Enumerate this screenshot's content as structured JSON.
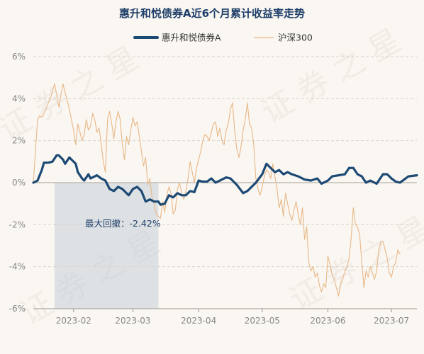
{
  "chart_data": {
    "type": "line",
    "title": "惠升和悦债券A近6个月累计收益率走势",
    "xlabel": "",
    "ylabel": "",
    "ylim": [
      -6,
      6
    ],
    "ytick_labels": [
      "6%",
      "4%",
      "2%",
      "0%",
      "-2%",
      "-4%",
      "-6%"
    ],
    "ytick_values": [
      6,
      4,
      2,
      0,
      -2,
      -4,
      -6
    ],
    "xlim": [
      "2023-01-13",
      "2023-07-13"
    ],
    "xtick_labels": [
      "2023-02",
      "2023-03",
      "2023-04",
      "2023-05",
      "2023-06",
      "2023-07"
    ],
    "xtick_dates": [
      "2023-02-01",
      "2023-03-01",
      "2023-04-01",
      "2023-05-01",
      "2023-06-01",
      "2023-07-01"
    ],
    "legend_position": "top-center",
    "grid": "horizontal-dashed",
    "annotation": {
      "text": "最大回撤：-2.42%",
      "region_start": "2023-01-23",
      "region_end": "2023-03-13"
    },
    "watermark": "证券之星",
    "series": [
      {
        "name": "惠升和悦债券A",
        "color": "#1d4a74",
        "points": [
          [
            "2023-01-13",
            0.0
          ],
          [
            "2023-01-15",
            0.1
          ],
          [
            "2023-01-17",
            0.6
          ],
          [
            "2023-01-18",
            0.95
          ],
          [
            "2023-01-20",
            0.95
          ],
          [
            "2023-01-22",
            1.0
          ],
          [
            "2023-01-24",
            1.3
          ],
          [
            "2023-01-25",
            1.3
          ],
          [
            "2023-01-27",
            1.1
          ],
          [
            "2023-01-28",
            0.9
          ],
          [
            "2023-01-30",
            1.2
          ],
          [
            "2023-01-31",
            1.1
          ],
          [
            "2023-02-02",
            0.9
          ],
          [
            "2023-02-03",
            0.5
          ],
          [
            "2023-02-05",
            0.2
          ],
          [
            "2023-02-06",
            0.1
          ],
          [
            "2023-02-08",
            0.4
          ],
          [
            "2023-02-09",
            0.2
          ],
          [
            "2023-02-11",
            0.3
          ],
          [
            "2023-02-12",
            0.35
          ],
          [
            "2023-02-14",
            0.2
          ],
          [
            "2023-02-16",
            0.1
          ],
          [
            "2023-02-18",
            -0.3
          ],
          [
            "2023-02-20",
            -0.4
          ],
          [
            "2023-02-22",
            -0.2
          ],
          [
            "2023-02-24",
            -0.3
          ],
          [
            "2023-02-26",
            -0.5
          ],
          [
            "2023-02-27",
            -0.6
          ],
          [
            "2023-03-01",
            -0.3
          ],
          [
            "2023-03-03",
            -0.2
          ],
          [
            "2023-03-05",
            -0.4
          ],
          [
            "2023-03-07",
            -0.9
          ],
          [
            "2023-03-09",
            -0.8
          ],
          [
            "2023-03-11",
            -0.9
          ],
          [
            "2023-03-13",
            -0.9
          ],
          [
            "2023-03-14",
            -1.05
          ],
          [
            "2023-03-16",
            -1.0
          ],
          [
            "2023-03-18",
            -0.6
          ],
          [
            "2023-03-20",
            -0.7
          ],
          [
            "2023-03-22",
            -0.5
          ],
          [
            "2023-03-24",
            -0.6
          ],
          [
            "2023-03-26",
            -0.6
          ],
          [
            "2023-03-28",
            -0.4
          ],
          [
            "2023-03-30",
            -0.45
          ],
          [
            "2023-04-01",
            0.1
          ],
          [
            "2023-04-03",
            0.05
          ],
          [
            "2023-04-05",
            0.05
          ],
          [
            "2023-04-07",
            0.2
          ],
          [
            "2023-04-09",
            0.0
          ],
          [
            "2023-04-11",
            0.1
          ],
          [
            "2023-04-14",
            0.25
          ],
          [
            "2023-04-16",
            0.2
          ],
          [
            "2023-04-19",
            -0.1
          ],
          [
            "2023-04-22",
            -0.5
          ],
          [
            "2023-04-24",
            -0.4
          ],
          [
            "2023-04-26",
            -0.2
          ],
          [
            "2023-04-28",
            0.0
          ],
          [
            "2023-05-01",
            0.4
          ],
          [
            "2023-05-03",
            0.9
          ],
          [
            "2023-05-05",
            0.7
          ],
          [
            "2023-05-07",
            0.5
          ],
          [
            "2023-05-09",
            0.6
          ],
          [
            "2023-05-11",
            0.4
          ],
          [
            "2023-05-13",
            0.5
          ],
          [
            "2023-05-15",
            0.4
          ],
          [
            "2023-05-18",
            0.3
          ],
          [
            "2023-05-21",
            0.15
          ],
          [
            "2023-05-24",
            0.1
          ],
          [
            "2023-05-27",
            0.2
          ],
          [
            "2023-05-29",
            -0.05
          ],
          [
            "2023-06-01",
            0.1
          ],
          [
            "2023-06-03",
            0.3
          ],
          [
            "2023-06-06",
            0.35
          ],
          [
            "2023-06-09",
            0.4
          ],
          [
            "2023-06-11",
            0.7
          ],
          [
            "2023-06-13",
            0.7
          ],
          [
            "2023-06-15",
            0.4
          ],
          [
            "2023-06-17",
            0.3
          ],
          [
            "2023-06-19",
            0.0
          ],
          [
            "2023-06-21",
            0.1
          ],
          [
            "2023-06-24",
            -0.05
          ],
          [
            "2023-06-27",
            0.4
          ],
          [
            "2023-06-29",
            0.4
          ],
          [
            "2023-07-01",
            0.2
          ],
          [
            "2023-07-03",
            0.05
          ],
          [
            "2023-07-05",
            0.0
          ],
          [
            "2023-07-07",
            0.15
          ],
          [
            "2023-07-09",
            0.3
          ],
          [
            "2023-07-13",
            0.35
          ]
        ]
      },
      {
        "name": "沪深300",
        "color": "#e8b888",
        "points": [
          [
            "2023-01-13",
            0.0
          ],
          [
            "2023-01-14",
            1.5
          ],
          [
            "2023-01-15",
            3.0
          ],
          [
            "2023-01-16",
            3.2
          ],
          [
            "2023-01-17",
            3.1
          ],
          [
            "2023-01-19",
            3.5
          ],
          [
            "2023-01-20",
            3.8
          ],
          [
            "2023-01-21",
            4.0
          ],
          [
            "2023-01-23",
            4.7
          ],
          [
            "2023-01-24",
            4.2
          ],
          [
            "2023-01-25",
            3.6
          ],
          [
            "2023-01-27",
            4.7
          ],
          [
            "2023-01-28",
            4.3
          ],
          [
            "2023-01-30",
            3.5
          ],
          [
            "2023-01-31",
            3.0
          ],
          [
            "2023-02-01",
            2.5
          ],
          [
            "2023-02-02",
            1.8
          ],
          [
            "2023-02-03",
            2.8
          ],
          [
            "2023-02-05",
            2.0
          ],
          [
            "2023-02-06",
            2.3
          ],
          [
            "2023-02-07",
            3.0
          ],
          [
            "2023-02-08",
            2.5
          ],
          [
            "2023-02-09",
            2.7
          ],
          [
            "2023-02-10",
            3.3
          ],
          [
            "2023-02-11",
            3.0
          ],
          [
            "2023-02-12",
            2.4
          ],
          [
            "2023-02-13",
            2.6
          ],
          [
            "2023-02-14",
            1.9
          ],
          [
            "2023-02-15",
            1.0
          ],
          [
            "2023-02-16",
            0.5
          ],
          [
            "2023-02-17",
            3.0
          ],
          [
            "2023-02-18",
            3.4
          ],
          [
            "2023-02-19",
            2.8
          ],
          [
            "2023-02-20",
            2.1
          ],
          [
            "2023-02-21",
            2.9
          ],
          [
            "2023-02-22",
            3.4
          ],
          [
            "2023-02-23",
            3.0
          ],
          [
            "2023-02-24",
            1.8
          ],
          [
            "2023-02-25",
            1.1
          ],
          [
            "2023-02-26",
            2.2
          ],
          [
            "2023-02-27",
            1.8
          ],
          [
            "2023-02-28",
            2.5
          ],
          [
            "2023-03-01",
            3.1
          ],
          [
            "2023-03-02",
            2.7
          ],
          [
            "2023-03-03",
            2.9
          ],
          [
            "2023-03-04",
            2.2
          ],
          [
            "2023-03-05",
            1.5
          ],
          [
            "2023-03-06",
            0.8
          ],
          [
            "2023-03-07",
            1.2
          ],
          [
            "2023-03-08",
            -0.1
          ],
          [
            "2023-03-09",
            0.2
          ],
          [
            "2023-03-10",
            -0.7
          ],
          [
            "2023-03-11",
            -1.0
          ],
          [
            "2023-03-12",
            -1.5
          ],
          [
            "2023-03-13",
            -1.6
          ],
          [
            "2023-03-14",
            -1.7
          ],
          [
            "2023-03-15",
            -0.9
          ],
          [
            "2023-03-16",
            -1.4
          ],
          [
            "2023-03-17",
            -0.6
          ],
          [
            "2023-03-18",
            -0.2
          ],
          [
            "2023-03-19",
            -0.5
          ],
          [
            "2023-03-20",
            -1.5
          ],
          [
            "2023-03-21",
            -1.3
          ],
          [
            "2023-03-22",
            -0.3
          ],
          [
            "2023-03-23",
            0.0
          ],
          [
            "2023-03-24",
            -0.5
          ],
          [
            "2023-03-25",
            -0.8
          ],
          [
            "2023-03-26",
            -0.4
          ],
          [
            "2023-03-27",
            0.2
          ],
          [
            "2023-03-28",
            1.0
          ],
          [
            "2023-03-29",
            0.5
          ],
          [
            "2023-03-30",
            0.0
          ],
          [
            "2023-03-31",
            0.7
          ],
          [
            "2023-04-02",
            1.5
          ],
          [
            "2023-04-03",
            2.0
          ],
          [
            "2023-04-04",
            2.3
          ],
          [
            "2023-04-05",
            2.2
          ],
          [
            "2023-04-06",
            2.0
          ],
          [
            "2023-04-07",
            2.4
          ],
          [
            "2023-04-08",
            2.8
          ],
          [
            "2023-04-09",
            2.9
          ],
          [
            "2023-04-10",
            2.2
          ],
          [
            "2023-04-11",
            2.6
          ],
          [
            "2023-04-12",
            2.0
          ],
          [
            "2023-04-13",
            1.8
          ],
          [
            "2023-04-14",
            2.5
          ],
          [
            "2023-04-15",
            2.8
          ],
          [
            "2023-04-16",
            3.5
          ],
          [
            "2023-04-17",
            3.8
          ],
          [
            "2023-04-18",
            2.5
          ],
          [
            "2023-04-19",
            1.6
          ],
          [
            "2023-04-20",
            1.2
          ],
          [
            "2023-04-21",
            1.7
          ],
          [
            "2023-04-22",
            2.5
          ],
          [
            "2023-04-23",
            3.0
          ],
          [
            "2023-04-24",
            3.8
          ],
          [
            "2023-04-25",
            2.8
          ],
          [
            "2023-04-26",
            2.6
          ],
          [
            "2023-04-27",
            1.8
          ],
          [
            "2023-04-28",
            0.2
          ],
          [
            "2023-04-29",
            -0.3
          ],
          [
            "2023-04-30",
            -0.6
          ],
          [
            "2023-05-01",
            -0.2
          ],
          [
            "2023-05-02",
            0.3
          ],
          [
            "2023-05-03",
            0.6
          ],
          [
            "2023-05-04",
            0.5
          ],
          [
            "2023-05-05",
            0.2
          ],
          [
            "2023-05-06",
            0.9
          ],
          [
            "2023-05-07",
            0.3
          ],
          [
            "2023-05-08",
            -0.3
          ],
          [
            "2023-05-09",
            -1.2
          ],
          [
            "2023-05-10",
            -0.8
          ],
          [
            "2023-05-11",
            -1.6
          ],
          [
            "2023-05-12",
            -0.5
          ],
          [
            "2023-05-13",
            -1.0
          ],
          [
            "2023-05-14",
            -1.5
          ],
          [
            "2023-05-15",
            -1.8
          ],
          [
            "2023-05-16",
            -1.3
          ],
          [
            "2023-05-17",
            -0.9
          ],
          [
            "2023-05-18",
            -1.5
          ],
          [
            "2023-05-19",
            -2.0
          ],
          [
            "2023-05-20",
            -1.2
          ],
          [
            "2023-05-21",
            -2.7
          ],
          [
            "2023-05-22",
            -2.1
          ],
          [
            "2023-05-23",
            -3.8
          ],
          [
            "2023-05-24",
            -4.2
          ],
          [
            "2023-05-25",
            -4.0
          ],
          [
            "2023-05-26",
            -4.5
          ],
          [
            "2023-05-27",
            -4.3
          ],
          [
            "2023-05-28",
            -4.9
          ],
          [
            "2023-05-29",
            -5.2
          ],
          [
            "2023-05-30",
            -4.8
          ],
          [
            "2023-05-31",
            -5.0
          ],
          [
            "2023-06-01",
            -3.5
          ],
          [
            "2023-06-02",
            -3.9
          ],
          [
            "2023-06-03",
            -4.4
          ],
          [
            "2023-06-04",
            -4.6
          ],
          [
            "2023-06-05",
            -5.0
          ],
          [
            "2023-06-06",
            -5.4
          ],
          [
            "2023-06-07",
            -4.8
          ],
          [
            "2023-06-08",
            -4.6
          ],
          [
            "2023-06-09",
            -4.2
          ],
          [
            "2023-06-10",
            -4.0
          ],
          [
            "2023-06-11",
            -3.6
          ],
          [
            "2023-06-12",
            -2.6
          ],
          [
            "2023-06-13",
            -1.2
          ],
          [
            "2023-06-14",
            -2.0
          ],
          [
            "2023-06-15",
            -2.1
          ],
          [
            "2023-06-16",
            -2.5
          ],
          [
            "2023-06-17",
            -3.8
          ],
          [
            "2023-06-18",
            -5.0
          ],
          [
            "2023-06-19",
            -4.2
          ],
          [
            "2023-06-20",
            -4.5
          ],
          [
            "2023-06-21",
            -4.0
          ],
          [
            "2023-06-22",
            -4.3
          ],
          [
            "2023-06-23",
            -4.6
          ],
          [
            "2023-06-24",
            -4.2
          ],
          [
            "2023-06-25",
            -3.2
          ],
          [
            "2023-06-26",
            -2.8
          ],
          [
            "2023-06-27",
            -2.8
          ],
          [
            "2023-06-28",
            -3.2
          ],
          [
            "2023-06-29",
            -3.6
          ],
          [
            "2023-06-30",
            -4.3
          ],
          [
            "2023-07-01",
            -4.5
          ],
          [
            "2023-07-02",
            -4.0
          ],
          [
            "2023-07-03",
            -3.8
          ],
          [
            "2023-07-04",
            -3.2
          ],
          [
            "2023-07-05",
            -3.4
          ]
        ]
      }
    ]
  }
}
